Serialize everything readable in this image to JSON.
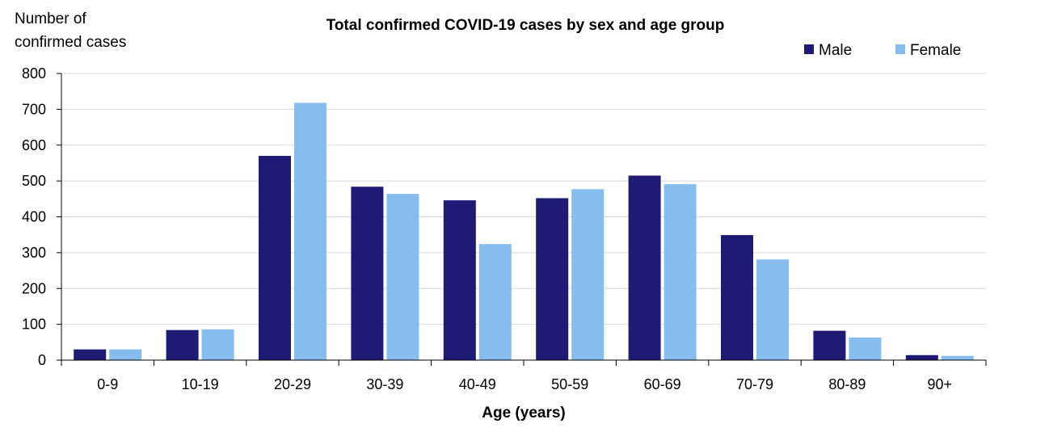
{
  "chart_data": {
    "type": "bar",
    "title": "Total confirmed COVID-19 cases by sex and age group",
    "ylabel_line1": "Number of",
    "ylabel_line2": "confirmed cases",
    "xlabel": "Age (years)",
    "categories": [
      "0-9",
      "10-19",
      "20-29",
      "30-39",
      "40-49",
      "50-59",
      "60-69",
      "70-79",
      "80-89",
      "90+"
    ],
    "series": [
      {
        "name": "Male",
        "color": "#1f1a73",
        "values": [
          30,
          84,
          570,
          484,
          446,
          452,
          515,
          349,
          82,
          14
        ]
      },
      {
        "name": "Female",
        "color": "#85bdee",
        "values": [
          30,
          86,
          718,
          464,
          324,
          477,
          491,
          281,
          63,
          12
        ]
      }
    ],
    "ylim": [
      0,
      800
    ],
    "yticks": [
      0,
      100,
      200,
      300,
      400,
      500,
      600,
      700,
      800
    ],
    "grid": true,
    "legend_position": "top-right"
  }
}
